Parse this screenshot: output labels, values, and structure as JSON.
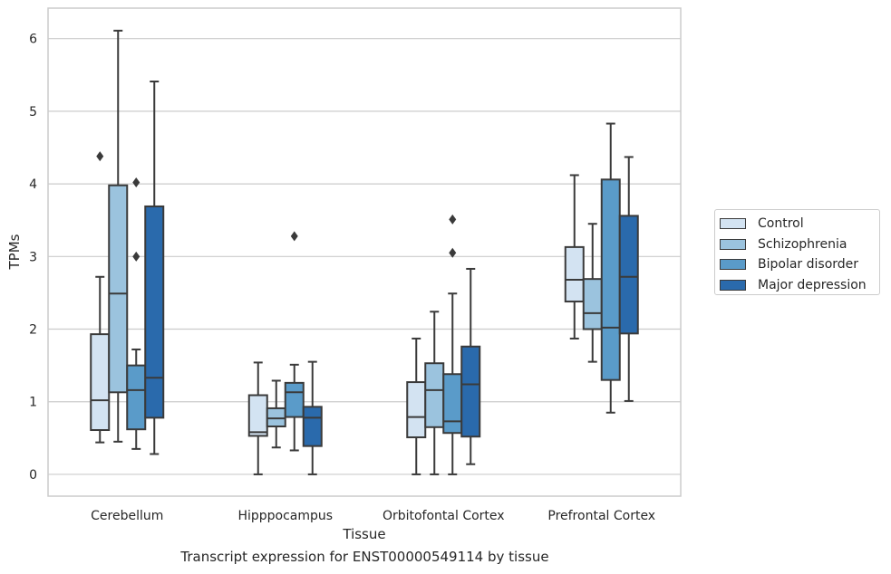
{
  "chart_data": {
    "type": "box",
    "xlabel": "Tissue",
    "ylabel": "TPMs",
    "ylim": [
      -0.3,
      6.42
    ],
    "yticks": [
      "0",
      "1",
      "2",
      "3",
      "4",
      "5",
      "6"
    ],
    "grid": "horizontal",
    "legend_placement": "outside-right",
    "categories": [
      "Cerebellum",
      "Hipppocampus",
      "Orbitofontal Cortex",
      "Prefrontal Cortex"
    ],
    "series": [
      {
        "name": "Control",
        "color": "#d3e3f2",
        "boxes": [
          {
            "whisker_low": 0.44,
            "q1": 0.61,
            "median": 1.02,
            "q3": 1.93,
            "whisker_high": 2.72,
            "outliers": [
              4.38
            ]
          },
          {
            "whisker_low": 0.0,
            "q1": 0.53,
            "median": 0.58,
            "q3": 1.09,
            "whisker_high": 1.54,
            "outliers": []
          },
          {
            "whisker_low": 0.0,
            "q1": 0.51,
            "median": 0.79,
            "q3": 1.27,
            "whisker_high": 1.87,
            "outliers": []
          },
          {
            "whisker_low": 1.87,
            "q1": 2.38,
            "median": 2.68,
            "q3": 3.13,
            "whisker_high": 4.12,
            "outliers": []
          }
        ]
      },
      {
        "name": "Schizophrenia",
        "color": "#9bc3de",
        "boxes": [
          {
            "whisker_low": 0.45,
            "q1": 1.13,
            "median": 2.49,
            "q3": 3.98,
            "whisker_high": 6.11,
            "outliers": []
          },
          {
            "whisker_low": 0.37,
            "q1": 0.66,
            "median": 0.77,
            "q3": 0.91,
            "whisker_high": 1.29,
            "outliers": []
          },
          {
            "whisker_low": 0.0,
            "q1": 0.65,
            "median": 1.16,
            "q3": 1.53,
            "whisker_high": 2.24,
            "outliers": []
          },
          {
            "whisker_low": 1.55,
            "q1": 2.0,
            "median": 2.22,
            "q3": 2.69,
            "whisker_high": 3.45,
            "outliers": []
          }
        ]
      },
      {
        "name": "Bipolar disorder",
        "color": "#5a9bc9",
        "boxes": [
          {
            "whisker_low": 0.35,
            "q1": 0.62,
            "median": 1.16,
            "q3": 1.5,
            "whisker_high": 1.72,
            "outliers": [
              3.0,
              4.02
            ]
          },
          {
            "whisker_low": 0.33,
            "q1": 0.79,
            "median": 1.13,
            "q3": 1.26,
            "whisker_high": 1.51,
            "outliers": [
              3.28
            ]
          },
          {
            "whisker_low": 0.0,
            "q1": 0.57,
            "median": 0.73,
            "q3": 1.38,
            "whisker_high": 2.49,
            "outliers": [
              3.05,
              3.51
            ]
          },
          {
            "whisker_low": 0.85,
            "q1": 1.3,
            "median": 2.02,
            "q3": 4.06,
            "whisker_high": 4.83,
            "outliers": []
          }
        ]
      },
      {
        "name": "Major depression",
        "color": "#2a6aac",
        "boxes": [
          {
            "whisker_low": 0.28,
            "q1": 0.78,
            "median": 1.33,
            "q3": 3.69,
            "whisker_high": 5.41,
            "outliers": []
          },
          {
            "whisker_low": 0.0,
            "q1": 0.39,
            "median": 0.78,
            "q3": 0.93,
            "whisker_high": 1.55,
            "outliers": []
          },
          {
            "whisker_low": 0.14,
            "q1": 0.52,
            "median": 1.24,
            "q3": 1.76,
            "whisker_high": 2.83,
            "outliers": []
          },
          {
            "whisker_low": 1.01,
            "q1": 1.94,
            "median": 2.72,
            "q3": 3.56,
            "whisker_high": 4.37,
            "outliers": []
          }
        ]
      }
    ]
  },
  "caption": "Transcript expression for ENST00000549114 by tissue",
  "styles": {
    "line_color": "#3a3a3a",
    "grid_color": "#cccccc",
    "frame_color": "#cccccc"
  }
}
